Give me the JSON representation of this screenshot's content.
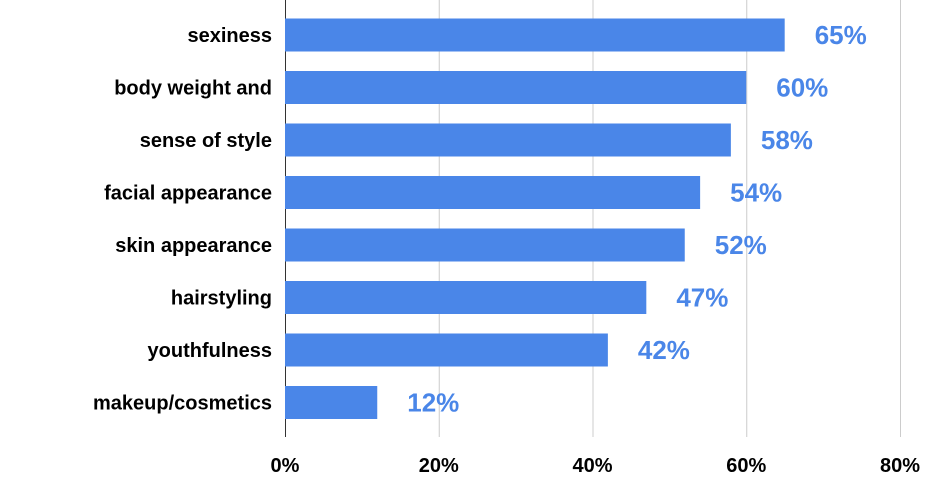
{
  "chart_data": {
    "type": "bar",
    "orientation": "horizontal",
    "categories": [
      "sexiness",
      "body weight and",
      "sense of style",
      "facial appearance",
      "skin appearance",
      "hairstyling",
      "youthfulness",
      "makeup/cosmetics"
    ],
    "values": [
      65,
      60,
      58,
      54,
      52,
      47,
      42,
      12
    ],
    "value_labels": [
      "65%",
      "60%",
      "58%",
      "54%",
      "52%",
      "47%",
      "42%",
      "12%"
    ],
    "x_ticks": [
      0,
      20,
      40,
      60,
      80
    ],
    "x_tick_labels": [
      "0%",
      "20%",
      "40%",
      "60%",
      "80%"
    ],
    "xlim": [
      0,
      80
    ],
    "grid": true,
    "legend": "none",
    "title": "",
    "xlabel": "",
    "ylabel": "",
    "bar_color": "#4a86e8",
    "label_color": "#4a86e8"
  }
}
